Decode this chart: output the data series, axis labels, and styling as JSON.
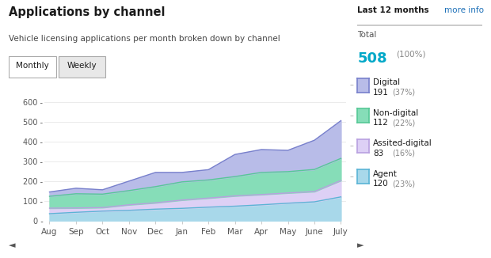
{
  "title": "Applications by channel",
  "subtitle": "Vehicle licensing applications per month broken down by channel",
  "months": [
    "Aug",
    "Sep",
    "Oct",
    "Nov",
    "Dec",
    "Jan",
    "Feb",
    "Mar",
    "Apr",
    "May",
    "June",
    "July"
  ],
  "agent": [
    35,
    42,
    48,
    52,
    58,
    62,
    68,
    73,
    80,
    88,
    95,
    120
  ],
  "assisted_digital": [
    28,
    22,
    18,
    28,
    32,
    42,
    46,
    52,
    52,
    52,
    52,
    83
  ],
  "non_digital": [
    60,
    72,
    68,
    72,
    82,
    92,
    92,
    98,
    112,
    108,
    112,
    112
  ],
  "digital": [
    22,
    28,
    22,
    48,
    72,
    48,
    52,
    112,
    116,
    108,
    148,
    191
  ],
  "fill_colors": {
    "agent": "#a8d8ea",
    "assisted_digital": "#ddd0f5",
    "non_digital": "#86ddb8",
    "digital": "#b8bce8"
  },
  "line_colors": {
    "agent": "#5ab4d5",
    "assisted_digital": "#b8a0e0",
    "non_digital": "#55c896",
    "digital": "#7880cc"
  },
  "legend": {
    "last12": "Last 12 months",
    "total_label": "Total",
    "total_value": "508",
    "total_pct": "(100%)",
    "total_color": "#00a8c8",
    "items": [
      {
        "label": "Digital",
        "value": "191",
        "pct": "(37%)",
        "fill": "#b8bce8",
        "line": "#7880cc"
      },
      {
        "label": "Non-digital",
        "value": "112",
        "pct": "(22%)",
        "fill": "#86ddb8",
        "line": "#55c896"
      },
      {
        "label": "Assited-digital",
        "value": "83",
        "pct": "(16%)",
        "fill": "#ddd0f5",
        "line": "#b8a0e0"
      },
      {
        "label": "Agent",
        "value": "120",
        "pct": "(23%)",
        "fill": "#a8d8ea",
        "line": "#5ab4d5"
      }
    ]
  },
  "ylim": [
    0,
    660
  ],
  "yticks": [
    0,
    100,
    200,
    300,
    400,
    500,
    600
  ],
  "bg_color": "#ffffff",
  "tab_monthly": "Monthly",
  "tab_weekly": "Weekly",
  "more_info": "more info"
}
